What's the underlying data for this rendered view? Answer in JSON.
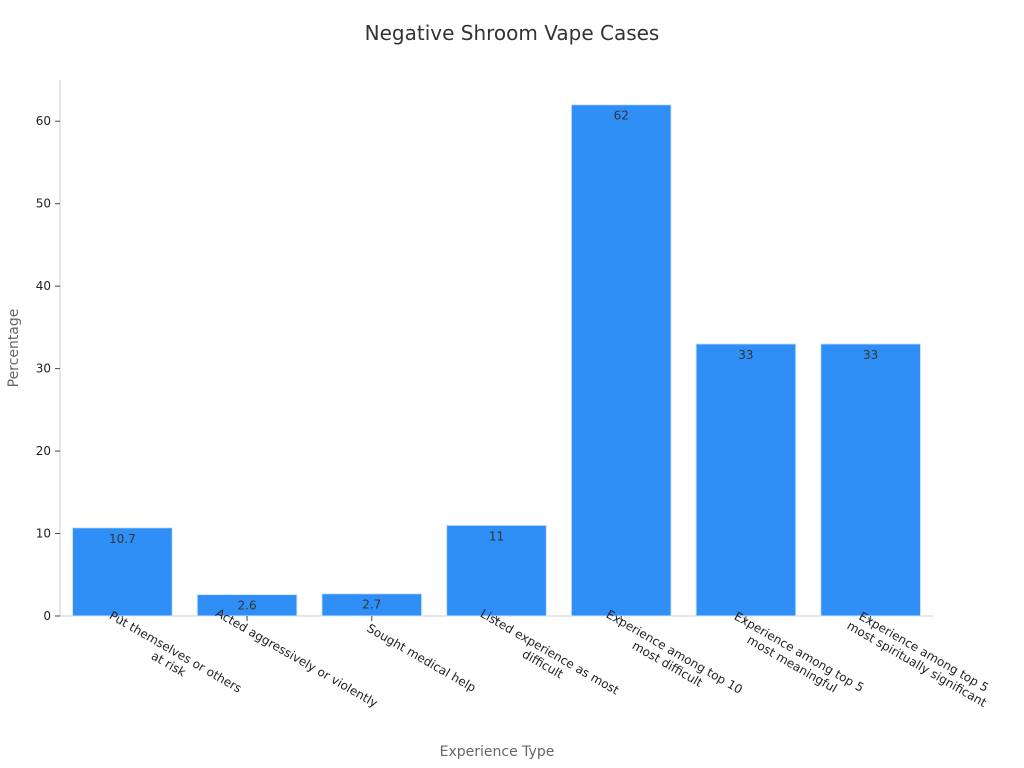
{
  "chart_data": {
    "type": "bar",
    "title": "Negative Shroom Vape Cases",
    "xlabel": "Experience Type",
    "ylabel": "Percentage",
    "categories": [
      [
        "Put themselves or others",
        "at risk"
      ],
      [
        "Acted aggressively or violently"
      ],
      [
        "Sought medical help"
      ],
      [
        "Listed experience as most",
        "difficult"
      ],
      [
        "Experience among top 10",
        "most difficult"
      ],
      [
        "Experience among top 5",
        "most meaningful"
      ],
      [
        "Experience among top 5",
        "most spiritually significant"
      ]
    ],
    "values": [
      10.7,
      2.6,
      2.7,
      11,
      62,
      33,
      33
    ],
    "data_labels": [
      "10.7",
      "2.6",
      "2.7",
      "11",
      "62",
      "33",
      "33"
    ],
    "yticks": [
      0,
      10,
      20,
      30,
      40,
      50,
      60
    ],
    "ylim": [
      0,
      65
    ],
    "grid": false,
    "bar_color": "#2f8ff7"
  }
}
